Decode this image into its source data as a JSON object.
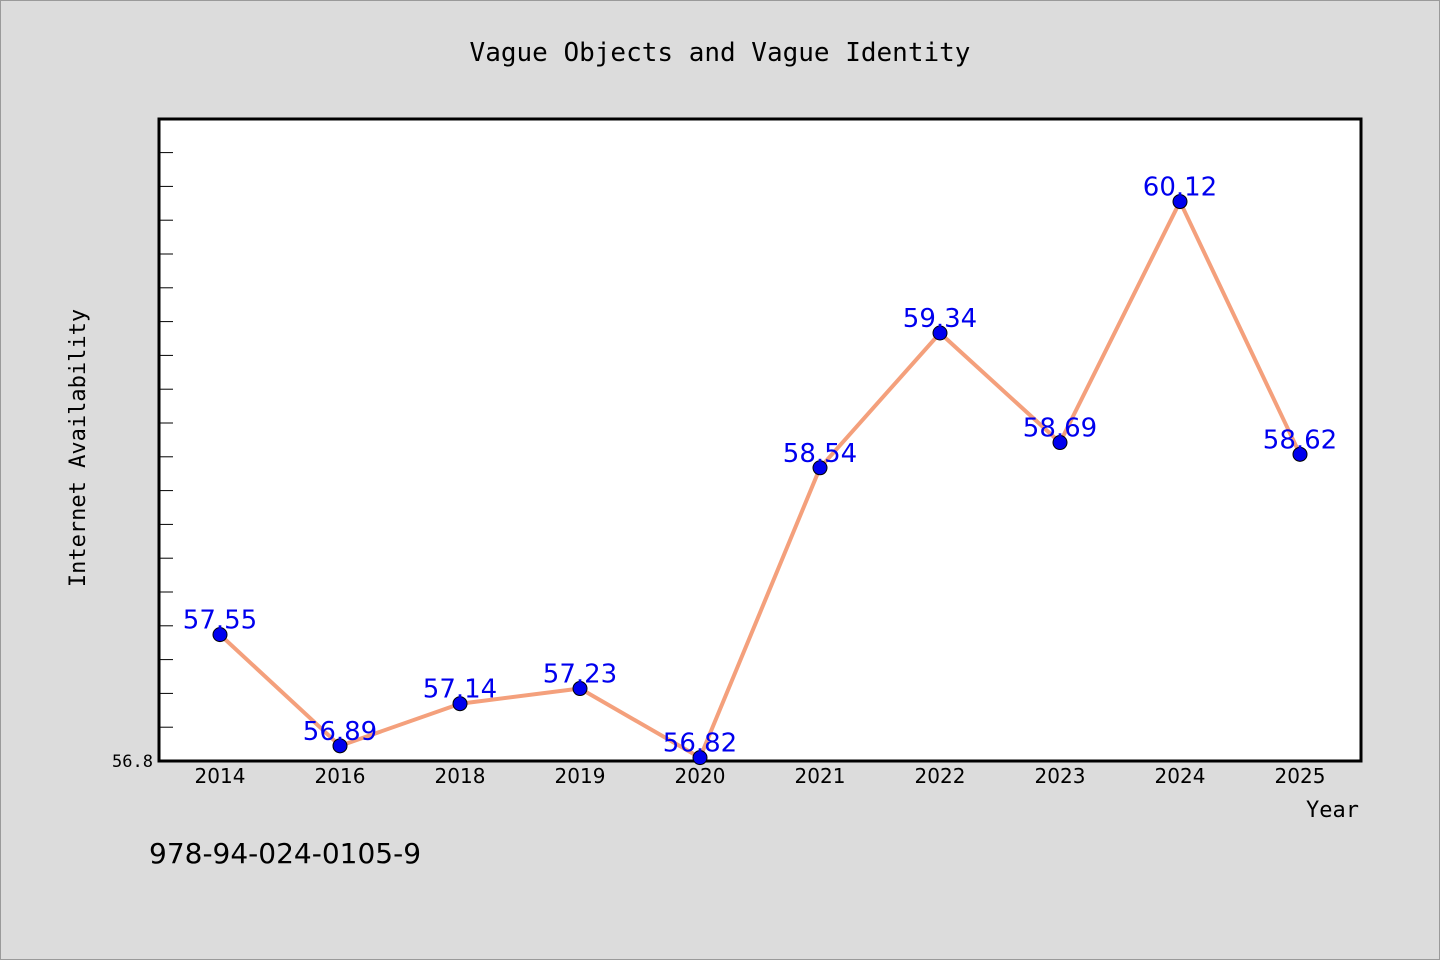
{
  "chart_data": {
    "type": "line",
    "title": "Vague Objects and Vague Identity",
    "xlabel": "Year",
    "ylabel": "Internet Availability",
    "categories": [
      "2014",
      "2016",
      "2018",
      "2019",
      "2020",
      "2021",
      "2022",
      "2023",
      "2024",
      "2025"
    ],
    "series": [
      {
        "values": [
          57.55,
          56.89,
          57.14,
          57.23,
          56.82,
          58.54,
          59.34,
          58.69,
          60.12,
          58.62
        ],
        "data_labels": [
          "57.55",
          "56.89",
          "57.14",
          "57.23",
          "56.82",
          "58.54",
          "59.34",
          "58.69",
          "60.12",
          "58.62"
        ]
      }
    ],
    "ylim": [
      56.8,
      60.61
    ],
    "yticks": [
      {
        "value": 56.8,
        "label": "56.8"
      }
    ],
    "grid": false,
    "legend": "none",
    "colors": {
      "line": "#f4a07c",
      "marker": "#0000ee",
      "data_label": "#0000ee",
      "plot_background": "#ffffff",
      "figure_background": "#dcdcdc"
    }
  },
  "annotations": {
    "isbn": "978-94-024-0105-9"
  }
}
